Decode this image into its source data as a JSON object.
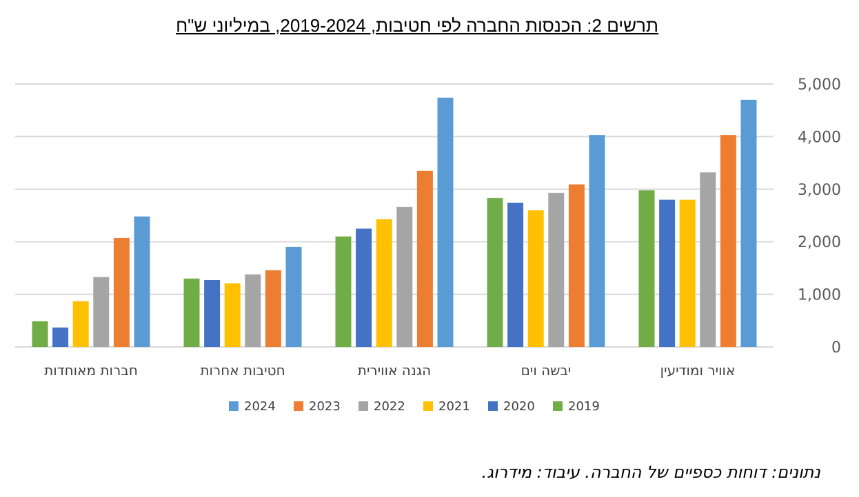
{
  "chart_data": {
    "type": "bar",
    "title": "תרשים 2: הכנסות החברה לפי חטיבות, 2019-2024, במיליוני ש\"ח",
    "categories": [
      "אוויר ומודיעין",
      "יבשה וים",
      "הגנה אווירית",
      "חטיבות אחרות",
      "חברות מאוחדות"
    ],
    "series": [
      {
        "name": "2019",
        "color": "#70AD47",
        "values": [
          2980,
          2830,
          2100,
          1300,
          490
        ]
      },
      {
        "name": "2020",
        "color": "#4472C4",
        "values": [
          2800,
          2740,
          2250,
          1270,
          370
        ]
      },
      {
        "name": "2021",
        "color": "#FFC000",
        "values": [
          2800,
          2600,
          2430,
          1210,
          870
        ]
      },
      {
        "name": "2022",
        "color": "#A5A5A5",
        "values": [
          3320,
          2930,
          2660,
          1380,
          1330
        ]
      },
      {
        "name": "2023",
        "color": "#ED7D31",
        "values": [
          4030,
          3090,
          3350,
          1460,
          2070
        ]
      },
      {
        "name": "2024",
        "color": "#5B9BD5",
        "values": [
          4700,
          4030,
          4740,
          1900,
          2480
        ]
      }
    ],
    "yticks": [
      "0",
      "1,000",
      "2,000",
      "3,000",
      "4,000",
      "5,000"
    ],
    "ylim": [
      0,
      5000
    ],
    "grid": true,
    "legend": "bottom",
    "axis_side": "right"
  },
  "footer": {
    "source": "נתונים: דוחות כספיים של החברה. עיבוד: מידרוג."
  }
}
